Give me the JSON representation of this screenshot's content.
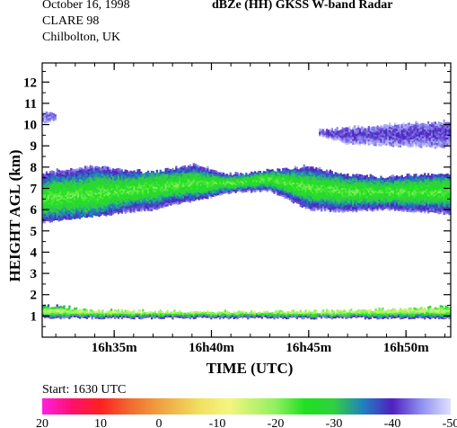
{
  "header": {
    "date": "October 16, 1998",
    "campaign": "CLARE 98",
    "site": "Chilbolton, UK",
    "title": "dBZe (HH)   GKSS  W-band Radar"
  },
  "footer": {
    "start": "Start: 1630 UTC"
  },
  "chart_data": {
    "type": "heatmap",
    "title": "dBZe (HH)   GKSS  W-band Radar",
    "xlabel": "TIME (UTC)",
    "ylabel": "HEIGHT AGL (km)",
    "x_unit": "minutes after 16h30m UTC",
    "xlim": [
      1.3,
      22.3
    ],
    "ylim": [
      0,
      12.9
    ],
    "x_ticks": [
      {
        "value": 5,
        "label": "16h35m"
      },
      {
        "value": 10,
        "label": "16h40m"
      },
      {
        "value": 15,
        "label": "16h45m"
      },
      {
        "value": 20,
        "label": "16h50m"
      }
    ],
    "y_ticks": [
      1,
      2,
      3,
      4,
      5,
      6,
      7,
      8,
      9,
      10,
      11,
      12
    ],
    "colorbar": {
      "label_values": [
        "20",
        "10",
        "0",
        "-10",
        "-20",
        "-30",
        "-40",
        "-50"
      ],
      "range": [
        20,
        -50
      ],
      "stops": [
        {
          "value": 20,
          "color": "#ff20e0"
        },
        {
          "value": 15,
          "color": "#ff1070"
        },
        {
          "value": 10,
          "color": "#ff2020"
        },
        {
          "value": 5,
          "color": "#f06a30"
        },
        {
          "value": 0,
          "color": "#f0a040"
        },
        {
          "value": -7,
          "color": "#f0e060"
        },
        {
          "value": -12,
          "color": "#f5f580"
        },
        {
          "value": -20,
          "color": "#90f060"
        },
        {
          "value": -25,
          "color": "#20e020"
        },
        {
          "value": -30,
          "color": "#30d040"
        },
        {
          "value": -35,
          "color": "#2080c0"
        },
        {
          "value": -40,
          "color": "#5020c0"
        },
        {
          "value": -45,
          "color": "#9090f0"
        },
        {
          "value": -50,
          "color": "#e0e0ff"
        }
      ]
    },
    "layers": [
      {
        "name": "boundary layer",
        "profile": [
          [
            1.3,
            1.5,
            0.9,
            1.2
          ],
          [
            4.0,
            1.2,
            0.9,
            1.15
          ],
          [
            10.0,
            1.15,
            0.9,
            1.15
          ],
          [
            16.0,
            1.2,
            0.9,
            1.15
          ],
          [
            20.0,
            1.3,
            0.9,
            1.2
          ],
          [
            22.3,
            1.4,
            0.9,
            1.2
          ]
        ],
        "core_dbz": -16,
        "edge_dbz": -42
      },
      {
        "name": "mid-level cloud",
        "profile": [
          [
            1.3,
            7.7,
            5.4,
            6.5
          ],
          [
            4.0,
            8.0,
            5.7,
            6.7
          ],
          [
            7.0,
            7.7,
            6.0,
            7.0
          ],
          [
            9.0,
            8.1,
            6.4,
            7.2
          ],
          [
            11.0,
            7.6,
            6.8,
            7.2
          ],
          [
            13.0,
            7.8,
            6.9,
            7.4
          ],
          [
            15.0,
            8.0,
            6.0,
            7.0
          ],
          [
            17.0,
            7.6,
            5.9,
            6.8
          ],
          [
            19.0,
            7.5,
            6.0,
            6.8
          ],
          [
            22.3,
            7.7,
            5.8,
            6.8
          ]
        ],
        "core_dbz": -23,
        "edge_dbz": -44
      },
      {
        "name": "upper cloud left",
        "profile": [
          [
            1.3,
            10.6,
            10.1,
            10.3
          ],
          [
            2.0,
            10.5,
            10.2,
            10.35
          ]
        ],
        "core_dbz": -44,
        "edge_dbz": -47
      },
      {
        "name": "upper cloud right",
        "profile": [
          [
            15.5,
            9.7,
            9.5,
            9.6
          ],
          [
            17.0,
            9.8,
            9.1,
            9.5
          ],
          [
            19.5,
            10.0,
            9.0,
            9.5
          ],
          [
            22.3,
            10.1,
            8.9,
            9.6
          ]
        ],
        "core_dbz": -41,
        "edge_dbz": -47
      }
    ]
  }
}
